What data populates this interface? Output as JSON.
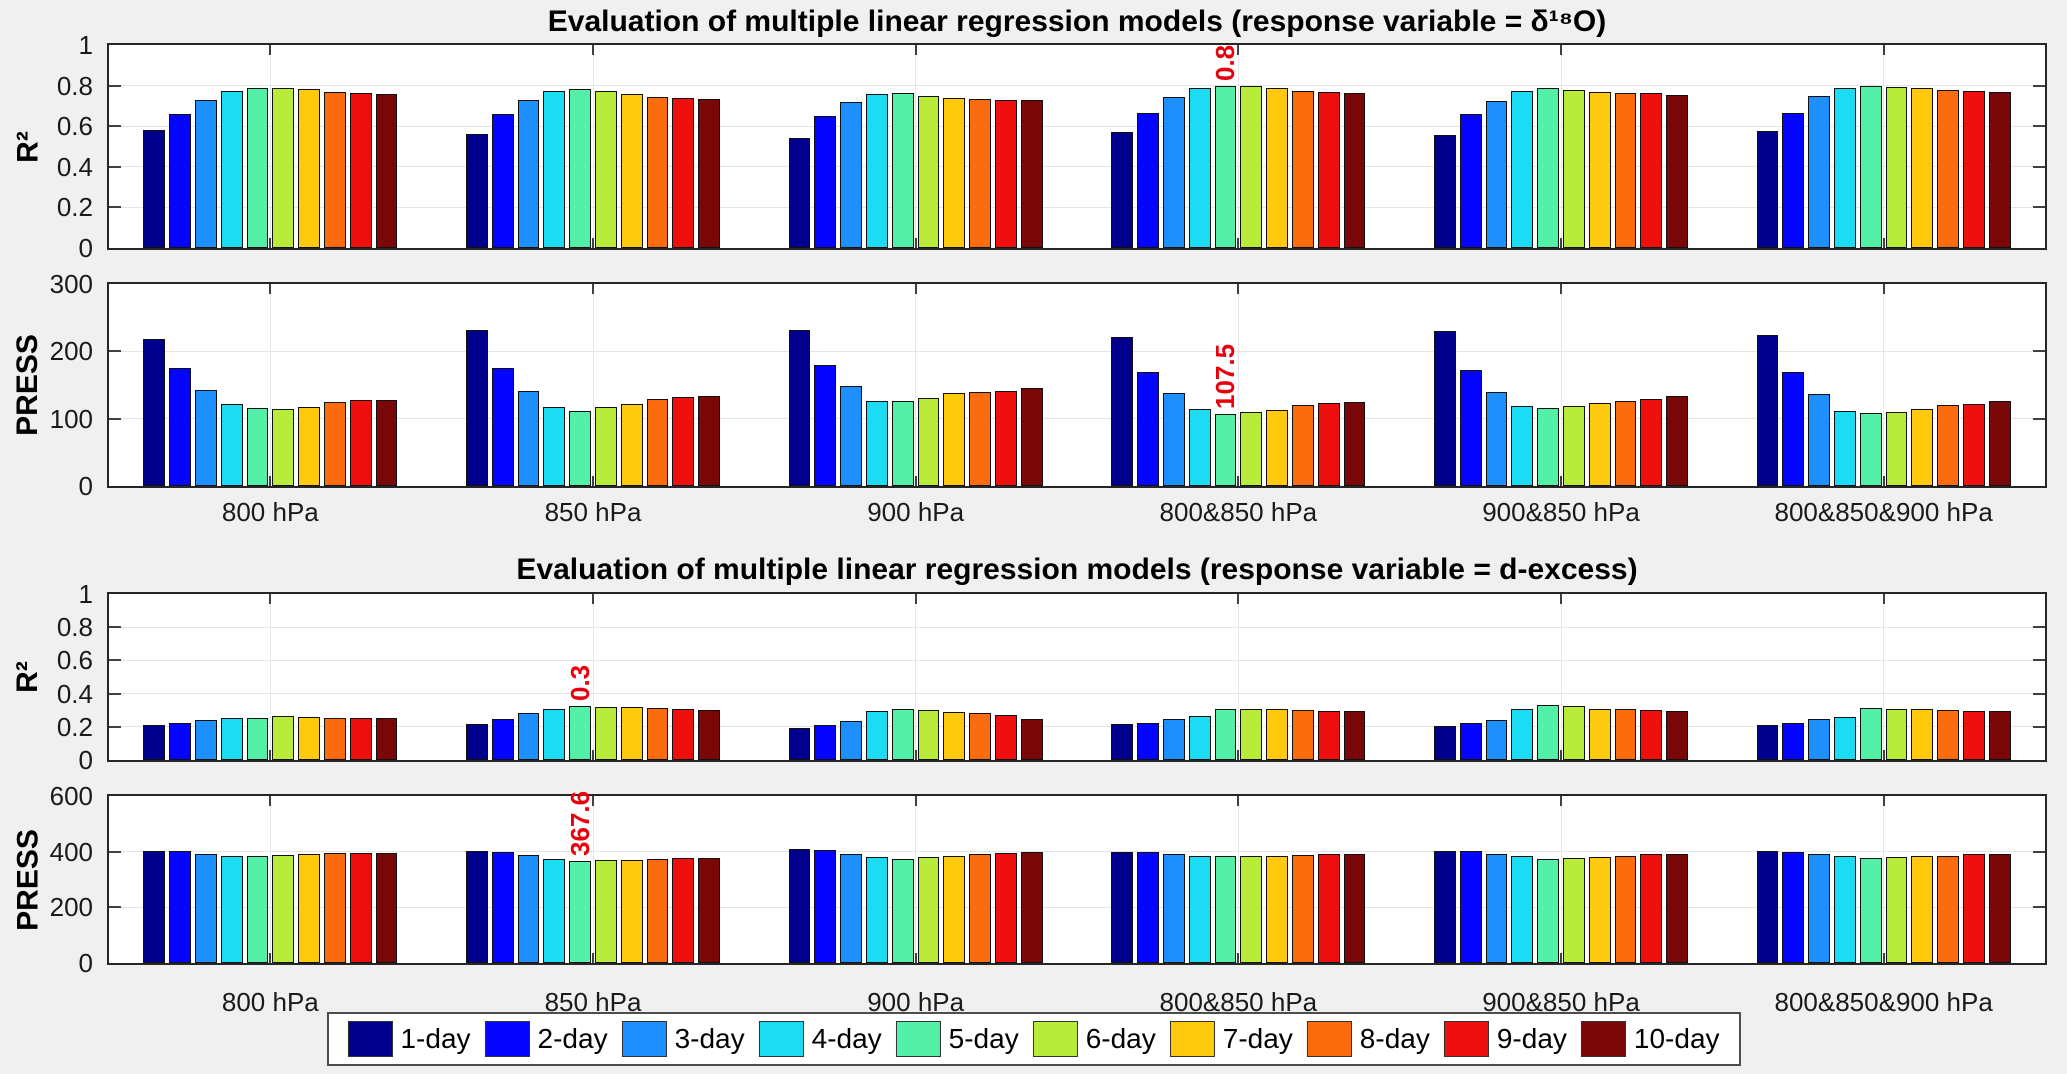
{
  "figure": {
    "background": "#f0f0f0",
    "plot_background": "#ffffff",
    "axis_color": "#262626",
    "grid_color": "#e4e4e4",
    "tick_color": "#404040",
    "bar_edge_color": "#111111",
    "annotation_color": "#e8000d"
  },
  "legend": {
    "items": [
      {
        "label": "1-day",
        "color": "#00008c"
      },
      {
        "label": "2-day",
        "color": "#0505ff"
      },
      {
        "label": "3-day",
        "color": "#1e8fff"
      },
      {
        "label": "4-day",
        "color": "#1bdcf2"
      },
      {
        "label": "5-day",
        "color": "#55f0a8"
      },
      {
        "label": "6-day",
        "color": "#b8eb3a"
      },
      {
        "label": "7-day",
        "color": "#ffc90d"
      },
      {
        "label": "8-day",
        "color": "#fb6c0f"
      },
      {
        "label": "9-day",
        "color": "#ef0f0f"
      },
      {
        "label": "10-day",
        "color": "#7b0808"
      }
    ]
  },
  "chart_data": [
    {
      "type": "bar",
      "title": "Evaluation of multiple linear regression models (response variable = δ¹⁸O)",
      "ylabel": "R²",
      "ylim": [
        0,
        1
      ],
      "yticks": [
        0,
        0.2,
        0.4,
        0.6,
        0.8,
        1
      ],
      "grid": true,
      "legend_position": "below-figure",
      "categories": [
        "800 hPa",
        "850 hPa",
        "900 hPa",
        "800&850 hPa",
        "900&850 hPa",
        "800&850&900 hPa"
      ],
      "series": [
        {
          "name": "1-day",
          "values": [
            0.58,
            0.56,
            0.54,
            0.57,
            0.555,
            0.575
          ]
        },
        {
          "name": "2-day",
          "values": [
            0.66,
            0.66,
            0.65,
            0.665,
            0.66,
            0.667
          ]
        },
        {
          "name": "3-day",
          "values": [
            0.73,
            0.73,
            0.72,
            0.745,
            0.722,
            0.747
          ]
        },
        {
          "name": "4-day",
          "values": [
            0.775,
            0.775,
            0.757,
            0.79,
            0.775,
            0.79
          ]
        },
        {
          "name": "5-day",
          "values": [
            0.786,
            0.785,
            0.763,
            0.8,
            0.787,
            0.8
          ]
        },
        {
          "name": "6-day",
          "values": [
            0.79,
            0.775,
            0.75,
            0.796,
            0.778,
            0.793
          ]
        },
        {
          "name": "7-day",
          "values": [
            0.783,
            0.76,
            0.74,
            0.79,
            0.768,
            0.787
          ]
        },
        {
          "name": "8-day",
          "values": [
            0.768,
            0.745,
            0.735,
            0.772,
            0.764,
            0.776
          ]
        },
        {
          "name": "9-day",
          "values": [
            0.763,
            0.74,
            0.73,
            0.767,
            0.762,
            0.774
          ]
        },
        {
          "name": "10-day",
          "values": [
            0.758,
            0.735,
            0.727,
            0.765,
            0.755,
            0.77
          ]
        }
      ],
      "annotation": {
        "category": 3,
        "series": 4,
        "label": "0.8"
      }
    },
    {
      "type": "bar",
      "ylabel": "PRESS",
      "ylim": [
        0,
        300
      ],
      "yticks": [
        0,
        100,
        200,
        300
      ],
      "grid": true,
      "categories": [
        "800 hPa",
        "850 hPa",
        "900 hPa",
        "800&850 hPa",
        "900&850 hPa",
        "800&850&900 hPa"
      ],
      "series": [
        {
          "name": "1-day",
          "values": [
            218,
            231,
            231,
            221,
            230,
            225
          ]
        },
        {
          "name": "2-day",
          "values": [
            175,
            175,
            180,
            170,
            172,
            170
          ]
        },
        {
          "name": "3-day",
          "values": [
            143,
            141,
            148,
            138,
            140,
            136
          ]
        },
        {
          "name": "4-day",
          "values": [
            122,
            117,
            127,
            115,
            119,
            112
          ]
        },
        {
          "name": "5-day",
          "values": [
            116,
            112,
            126,
            107.5,
            116,
            108
          ]
        },
        {
          "name": "6-day",
          "values": [
            114,
            118,
            131,
            110,
            119,
            110
          ]
        },
        {
          "name": "7-day",
          "values": [
            117,
            122,
            138,
            113,
            124,
            114
          ]
        },
        {
          "name": "8-day",
          "values": [
            125,
            129,
            140,
            121,
            127,
            120
          ]
        },
        {
          "name": "9-day",
          "values": [
            128,
            132,
            141,
            123,
            129,
            122
          ]
        },
        {
          "name": "10-day",
          "values": [
            128,
            134,
            146,
            125,
            133,
            126
          ]
        }
      ],
      "annotation": {
        "category": 3,
        "series": 4,
        "label": "107.5"
      }
    },
    {
      "type": "bar",
      "title": "Evaluation of multiple linear regression models (response variable = d-excess)",
      "ylabel": "R²",
      "ylim": [
        0,
        1
      ],
      "yticks": [
        0,
        0.2,
        0.4,
        0.6,
        0.8,
        1
      ],
      "grid": true,
      "categories": [
        "800 hPa",
        "850 hPa",
        "900 hPa",
        "800&850 hPa",
        "900&850 hPa",
        "800&850&900 hPa"
      ],
      "series": [
        {
          "name": "1-day",
          "values": [
            0.21,
            0.215,
            0.195,
            0.215,
            0.206,
            0.21
          ]
        },
        {
          "name": "2-day",
          "values": [
            0.22,
            0.245,
            0.21,
            0.225,
            0.224,
            0.225
          ]
        },
        {
          "name": "3-day",
          "values": [
            0.24,
            0.285,
            0.235,
            0.25,
            0.243,
            0.25
          ]
        },
        {
          "name": "4-day",
          "values": [
            0.255,
            0.31,
            0.295,
            0.265,
            0.306,
            0.26
          ]
        },
        {
          "name": "5-day",
          "values": [
            0.255,
            0.325,
            0.31,
            0.305,
            0.33,
            0.315
          ]
        },
        {
          "name": "6-day",
          "values": [
            0.265,
            0.322,
            0.302,
            0.31,
            0.325,
            0.31
          ]
        },
        {
          "name": "7-day",
          "values": [
            0.26,
            0.318,
            0.29,
            0.305,
            0.31,
            0.307
          ]
        },
        {
          "name": "8-day",
          "values": [
            0.255,
            0.312,
            0.285,
            0.3,
            0.306,
            0.3
          ]
        },
        {
          "name": "9-day",
          "values": [
            0.255,
            0.305,
            0.272,
            0.295,
            0.3,
            0.297
          ]
        },
        {
          "name": "10-day",
          "values": [
            0.252,
            0.302,
            0.25,
            0.295,
            0.295,
            0.295
          ]
        }
      ],
      "annotation": {
        "category": 1,
        "series": 4,
        "label": "0.3"
      }
    },
    {
      "type": "bar",
      "ylabel": "PRESS",
      "ylim": [
        0,
        600
      ],
      "yticks": [
        0,
        200,
        400,
        600
      ],
      "grid": true,
      "categories": [
        "800 hPa",
        "850 hPa",
        "900 hPa",
        "800&850 hPa",
        "900&850 hPa",
        "800&850&900 hPa"
      ],
      "series": [
        {
          "name": "1-day",
          "values": [
            403,
            401,
            411,
            400,
            404,
            403
          ]
        },
        {
          "name": "2-day",
          "values": [
            401,
            398,
            405,
            399,
            401,
            400
          ]
        },
        {
          "name": "3-day",
          "values": [
            390,
            388,
            392,
            390,
            390,
            390
          ]
        },
        {
          "name": "4-day",
          "values": [
            383,
            374,
            381,
            385,
            384,
            386
          ]
        },
        {
          "name": "5-day",
          "values": [
            385,
            367.6,
            374,
            383,
            372,
            379
          ]
        },
        {
          "name": "6-day",
          "values": [
            388,
            369,
            380,
            384,
            377,
            381
          ]
        },
        {
          "name": "7-day",
          "values": [
            391,
            371,
            385,
            385,
            380,
            383
          ]
        },
        {
          "name": "8-day",
          "values": [
            394,
            374,
            390,
            389,
            385,
            385
          ]
        },
        {
          "name": "9-day",
          "values": [
            395,
            377,
            396,
            392,
            390,
            391
          ]
        },
        {
          "name": "10-day",
          "values": [
            397,
            377,
            398,
            392,
            391,
            391
          ]
        }
      ],
      "annotation": {
        "category": 1,
        "series": 4,
        "label": "367.6"
      }
    }
  ]
}
